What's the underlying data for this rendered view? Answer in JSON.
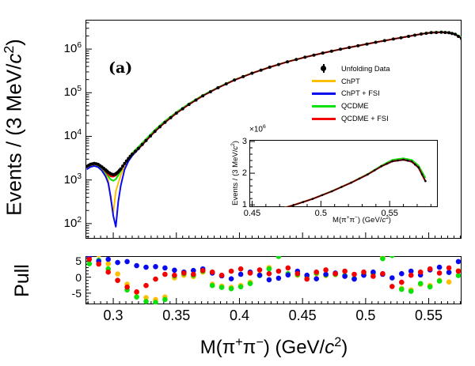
{
  "panel_label": "(a)",
  "labels": {
    "main_y": "Events / (3 MeV/<i>c</i><sup>2</sup>)",
    "pull_y": "Pull",
    "x": "M(π<sup>+</sup>π<sup>−</sup>) (GeV/<i>c</i><sup>2</sup>)",
    "inset_y": "Events / (3 MeV/<i>c</i><sup>2</sup>)",
    "inset_x": "M(π<sup>+</sup>π<sup>−</sup>) (GeV/<i>c</i><sup>2</sup>)",
    "inset_multiplier": "×10<sup>6</sup>"
  },
  "colors": {
    "data": "#000000",
    "chpt": "#ffbe00",
    "chpt_fsi": "#0a0aee",
    "qcdme": "#0ae00a",
    "qcdme_fsi": "#f40000"
  },
  "legend": {
    "items": [
      {
        "label": "Unfolding Data",
        "color": "#000000",
        "marker": "point"
      },
      {
        "label": "ChPT",
        "color": "#ffbe00",
        "marker": "line"
      },
      {
        "label": "ChPT + FSI",
        "color": "#0a0aee",
        "marker": "line"
      },
      {
        "label": "QCDME",
        "color": "#0ae00a",
        "marker": "line"
      },
      {
        "label": "QCDME + FSI",
        "color": "#f40000",
        "marker": "line"
      }
    ]
  },
  "chart_data": [
    {
      "id": "main-spectrum",
      "type": "line",
      "yscale": "log",
      "ylabel": "Events / (3 MeV/c2)",
      "xlabel": "M(pi+pi-) (GeV/c2)",
      "xlim": [
        0.278,
        0.576
      ],
      "ylim": [
        45,
        4700000
      ],
      "xticks": [
        0.3,
        0.35,
        0.4,
        0.45,
        0.5,
        0.55
      ],
      "xminor": 0.005,
      "yticks_exp": [
        2,
        3,
        4,
        5,
        6
      ],
      "grid": false,
      "legend_position": "inside-right",
      "x": [
        0.279,
        0.282,
        0.285,
        0.288,
        0.291,
        0.294,
        0.296,
        0.298,
        0.3,
        0.302,
        0.304,
        0.306,
        0.309,
        0.312,
        0.315,
        0.32,
        0.326,
        0.333,
        0.341,
        0.35,
        0.36,
        0.371,
        0.383,
        0.396,
        0.41,
        0.424,
        0.438,
        0.452,
        0.466,
        0.48,
        0.494,
        0.508,
        0.522,
        0.534,
        0.544,
        0.552,
        0.56,
        0.566,
        0.571,
        0.576
      ],
      "series": [
        {
          "name": "Unfolding Data",
          "color": "#000000",
          "style": "points",
          "values": [
            2050,
            2300,
            2400,
            2280,
            2000,
            1700,
            1500,
            1380,
            1320,
            1380,
            1550,
            1800,
            2400,
            3100,
            3900,
            5300,
            8000,
            13000,
            21000,
            34000,
            54000,
            85000,
            130000,
            195000,
            280000,
            385000,
            510000,
            650000,
            810000,
            990000,
            1190000,
            1430000,
            1700000,
            1960000,
            2220000,
            2380000,
            2430000,
            2370000,
            2180000,
            1750000
          ]
        },
        {
          "name": "ChPT",
          "color": "#ffbe00",
          "style": "line",
          "values": [
            1900,
            2150,
            2250,
            2120,
            1780,
            1350,
            1000,
            350,
            180,
            550,
            850,
            1300,
            2100,
            2900,
            3750,
            5150,
            7900,
            12900,
            20800,
            33800,
            53800,
            84800,
            129800,
            194800,
            279800,
            384800,
            509800,
            649800,
            809800,
            989800,
            1189800,
            1429800,
            1699800,
            1959800,
            2215000,
            2370000,
            2420000,
            2360000,
            2170000,
            1740000
          ]
        },
        {
          "name": "ChPT + FSI",
          "color": "#0a0aee",
          "style": "line",
          "values": [
            1750,
            2000,
            2100,
            1970,
            1640,
            1200,
            850,
            400,
            150,
            85,
            320,
            750,
            1750,
            2700,
            3600,
            5100,
            7900,
            12900,
            20900,
            33900,
            53900,
            84900,
            129900,
            194900,
            279900,
            384900,
            509900,
            649900,
            809900,
            989900,
            1189900,
            1429900,
            1699900,
            1959900,
            2218000,
            2375000,
            2425000,
            2365000,
            2175000,
            1745000
          ]
        },
        {
          "name": "QCDME",
          "color": "#0ae00a",
          "style": "line",
          "values": [
            2080,
            2270,
            2330,
            2180,
            1850,
            1450,
            1220,
            1020,
            960,
            1040,
            1280,
            1620,
            2330,
            3150,
            4150,
            5750,
            8700,
            14000,
            22400,
            35800,
            56300,
            87500,
            133000,
            198000,
            283000,
            388000,
            513000,
            653000,
            813000,
            993000,
            1193000,
            1433000,
            1706000,
            1972000,
            2240000,
            2420000,
            2470000,
            2420000,
            2240000,
            1850000
          ]
        },
        {
          "name": "QCDME + FSI",
          "color": "#f40000",
          "style": "line",
          "values": [
            2000,
            2250,
            2330,
            2200,
            1900,
            1550,
            1330,
            1210,
            1190,
            1260,
            1450,
            1720,
            2360,
            3080,
            3880,
            5280,
            7980,
            12950,
            20950,
            33950,
            53950,
            84950,
            129950,
            194950,
            279950,
            384950,
            509950,
            649950,
            809950,
            989950,
            1189950,
            1429950,
            1699950,
            1959950,
            2220000,
            2380000,
            2430000,
            2370000,
            2180000,
            1750000
          ]
        }
      ]
    },
    {
      "id": "inset-zoom",
      "type": "line",
      "yscale": "linear",
      "series_from": "main-spectrum",
      "xlim": [
        0.448,
        0.585
      ],
      "ylim": [
        930000,
        3050000
      ],
      "xticks": [
        0.45,
        0.5,
        0.55
      ],
      "xminor": 0.01,
      "yticks": [
        1000000,
        2000000,
        3000000
      ],
      "yminor": 200000,
      "ytick_div": 1000000,
      "grid": false
    },
    {
      "id": "pull",
      "type": "scatter",
      "yscale": "linear",
      "ylabel": "Pull",
      "xlim": [
        0.278,
        0.576
      ],
      "ylim": [
        -8.5,
        6.6
      ],
      "xticks": [
        0.3,
        0.35,
        0.4,
        0.45,
        0.5,
        0.55
      ],
      "xminor": 0.005,
      "yticks": [
        -5,
        0,
        5
      ],
      "yminor": 1,
      "grid": false,
      "x": [
        0.281,
        0.2885,
        0.296,
        0.3035,
        0.311,
        0.3185,
        0.326,
        0.3335,
        0.341,
        0.3485,
        0.356,
        0.3635,
        0.371,
        0.3785,
        0.386,
        0.3935,
        0.401,
        0.4085,
        0.416,
        0.4235,
        0.431,
        0.4385,
        0.446,
        0.4535,
        0.461,
        0.4685,
        0.476,
        0.4835,
        0.491,
        0.4985,
        0.506,
        0.5135,
        0.521,
        0.5285,
        0.536,
        0.5435,
        0.551,
        0.5585,
        0.566,
        0.5735
      ],
      "series": [
        {
          "name": "ChPT",
          "color": "#ffbe00",
          "values": [
            6.8,
            7.0,
            4.2,
            1.0,
            -2.2,
            -4.8,
            -6.4,
            -7.0,
            -6.2,
            -0.2,
            0.6,
            0.2,
            1.6,
            -2.2,
            -2.8,
            -3.2,
            -2.6,
            -1.6,
            0.8,
            3.0,
            6.9,
            0.9,
            0.6,
            0.2,
            1.0,
            0.5,
            0.8,
            0.3,
            -0.5,
            0.7,
            1.1,
            6.2,
            7.0,
            -3.5,
            -4.0,
            -2.2,
            -2.6,
            -1.0,
            -1.5,
            2.0
          ]
        },
        {
          "name": "QCDME",
          "color": "#0ae00a",
          "values": [
            4.2,
            5.3,
            2.6,
            -1.0,
            -4.0,
            -6.2,
            -7.6,
            -7.9,
            -7.0,
            0.4,
            1.1,
            0.6,
            1.9,
            -2.6,
            -3.2,
            -3.6,
            -3.0,
            -2.0,
            0.5,
            2.6,
            6.5,
            1.1,
            0.8,
            0.4,
            1.3,
            0.7,
            0.9,
            0.5,
            -0.4,
            0.9,
            1.3,
            5.8,
            6.8,
            -3.8,
            -4.4,
            -2.0,
            -3.0,
            -1.2,
            1.5,
            0.5
          ]
        },
        {
          "name": "ChPT + FSI",
          "color": "#0a0aee",
          "values": [
            6.5,
            5.0,
            5.6,
            4.6,
            4.9,
            3.6,
            3.1,
            3.3,
            2.9,
            2.2,
            1.6,
            2.1,
            2.6,
            1.3,
            0.4,
            -0.5,
            0.9,
            1.6,
            0.6,
            -0.8,
            -0.3,
            0.7,
            1.9,
            0.6,
            -0.5,
            0.9,
            1.3,
            0.3,
            -0.6,
            0.6,
            1.6,
            0.9,
            -0.2,
            1.1,
            1.9,
            0.7,
            2.3,
            3.1,
            1.5,
            4.9
          ]
        },
        {
          "name": "QCDME + FSI",
          "color": "#f40000",
          "values": [
            5.6,
            4.1,
            1.6,
            -1.0,
            -3.1,
            -4.6,
            -2.6,
            -0.6,
            0.9,
            0.6,
            1.3,
            0.9,
            2.1,
            1.6,
            0.6,
            1.9,
            2.6,
            1.3,
            2.3,
            1.1,
            1.9,
            2.9,
            1.1,
            -0.6,
            1.6,
            2.3,
            1.1,
            1.9,
            0.9,
            1.6,
            0.3,
            1.1,
            -2.9,
            -1.6,
            0.6,
            1.6,
            2.6,
            1.3,
            2.9,
            1.9
          ]
        }
      ]
    }
  ]
}
